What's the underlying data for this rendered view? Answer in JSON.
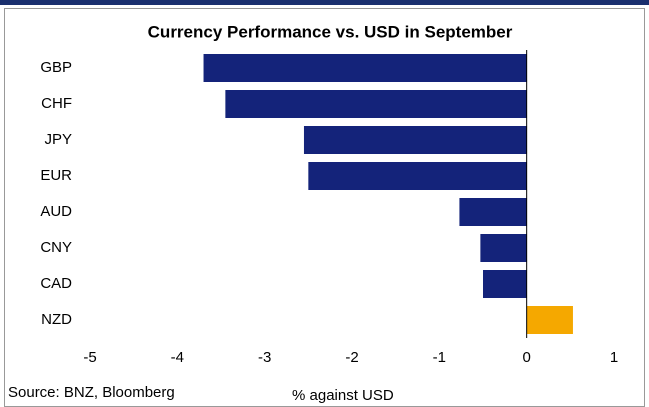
{
  "chart_data": {
    "type": "hbar",
    "title": "Currency Performance vs. USD in September",
    "categories": [
      "GBP",
      "CHF",
      "JPY",
      "EUR",
      "AUD",
      "CNY",
      "CAD",
      "NZD"
    ],
    "values": [
      -3.7,
      -3.45,
      -2.55,
      -2.5,
      -0.77,
      -0.53,
      -0.5,
      0.53
    ],
    "colors": [
      "#14237a",
      "#14237a",
      "#14237a",
      "#14237a",
      "#14237a",
      "#14237a",
      "#14237a",
      "#f5a800"
    ],
    "xlim": [
      -5,
      1
    ],
    "xticks": [
      -5,
      -4,
      -3,
      -2,
      -1,
      0,
      1
    ],
    "xlabel": "% against USD",
    "source": "Source: BNZ, Bloomberg"
  }
}
